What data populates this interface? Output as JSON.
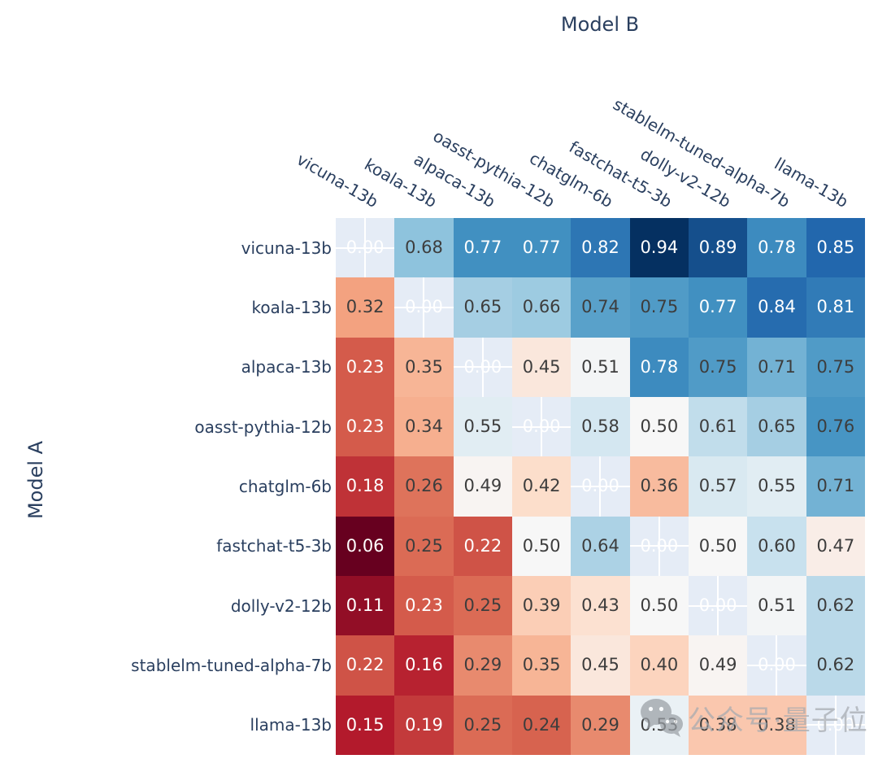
{
  "chart_data": {
    "type": "heatmap",
    "title": "",
    "x_label": "Model B",
    "y_label": "Model A",
    "x_categories": [
      "vicuna-13b",
      "koala-13b",
      "alpaca-13b",
      "oasst-pythia-12b",
      "chatglm-6b",
      "fastchat-t5-3b",
      "dolly-v2-12b",
      "stablelm-tuned-alpha-7b",
      "llama-13b"
    ],
    "y_categories": [
      "vicuna-13b",
      "koala-13b",
      "alpaca-13b",
      "oasst-pythia-12b",
      "chatglm-6b",
      "fastchat-t5-3b",
      "dolly-v2-12b",
      "stablelm-tuned-alpha-7b",
      "llama-13b"
    ],
    "values": [
      [
        0.0,
        0.68,
        0.77,
        0.77,
        0.82,
        0.94,
        0.89,
        0.78,
        0.85
      ],
      [
        0.32,
        0.0,
        0.65,
        0.66,
        0.74,
        0.75,
        0.77,
        0.84,
        0.81
      ],
      [
        0.23,
        0.35,
        0.0,
        0.45,
        0.51,
        0.78,
        0.75,
        0.71,
        0.75
      ],
      [
        0.23,
        0.34,
        0.55,
        0.0,
        0.58,
        0.5,
        0.61,
        0.65,
        0.76
      ],
      [
        0.18,
        0.26,
        0.49,
        0.42,
        0.0,
        0.36,
        0.57,
        0.55,
        0.71
      ],
      [
        0.06,
        0.25,
        0.22,
        0.5,
        0.64,
        0.0,
        0.5,
        0.6,
        0.47
      ],
      [
        0.11,
        0.23,
        0.25,
        0.39,
        0.43,
        0.5,
        0.0,
        0.51,
        0.62
      ],
      [
        0.22,
        0.16,
        0.29,
        0.35,
        0.45,
        0.4,
        0.49,
        0.0,
        0.62
      ],
      [
        0.15,
        0.19,
        0.25,
        0.24,
        0.29,
        0.53,
        0.38,
        0.38,
        0.0
      ]
    ],
    "value_decimals": 2,
    "zmin": 0.06,
    "zmax": 0.94,
    "colorscale_name": "RdBu",
    "colorscale_stops": [
      [
        0.0,
        [
          103,
          0,
          31
        ]
      ],
      [
        0.1,
        [
          178,
          24,
          43
        ]
      ],
      [
        0.2,
        [
          214,
          96,
          77
        ]
      ],
      [
        0.3,
        [
          244,
          165,
          130
        ]
      ],
      [
        0.4,
        [
          253,
          219,
          199
        ]
      ],
      [
        0.5,
        [
          247,
          247,
          247
        ]
      ],
      [
        0.6,
        [
          209,
          229,
          240
        ]
      ],
      [
        0.7,
        [
          146,
          197,
          222
        ]
      ],
      [
        0.8,
        [
          67,
          147,
          195
        ]
      ],
      [
        0.9,
        [
          33,
          102,
          172
        ]
      ],
      [
        1.0,
        [
          5,
          48,
          97
        ]
      ]
    ],
    "diagonal_background": "#e5ecf6",
    "gridline_color": "#ffffff",
    "text_rules": {
      "white_if_lte": 0.23,
      "white_if_gte": 0.77,
      "light_color": "#ffffff",
      "dark_color": "#3d3d3d"
    },
    "axis_text_color": "#2a3f5f",
    "legend_position": "none"
  },
  "watermark": {
    "icon": "wechat-icon",
    "text": "公众号·量子位",
    "color": "#a6aab0"
  }
}
